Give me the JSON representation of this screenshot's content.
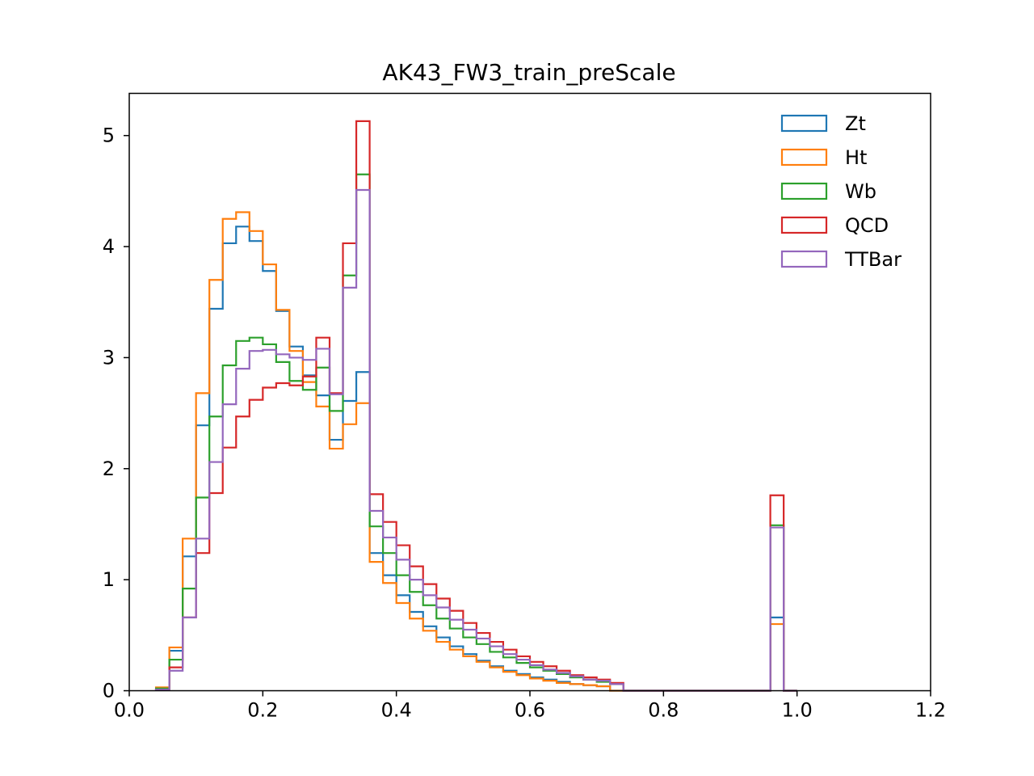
{
  "chart_data": {
    "type": "histogram-step",
    "title": "AK43_FW3_train_preScale",
    "xlabel": "",
    "ylabel": "",
    "xlim": [
      0.0,
      1.2
    ],
    "ylim": [
      0,
      5.38
    ],
    "xticks": [
      0.0,
      0.2,
      0.4,
      0.6,
      0.8,
      1.0,
      1.2
    ],
    "xtick_labels": [
      "0.0",
      "0.2",
      "0.4",
      "0.6",
      "0.8",
      "1.0",
      "1.2"
    ],
    "yticks": [
      0,
      1,
      2,
      3,
      4,
      5
    ],
    "ytick_labels": [
      "0",
      "1",
      "2",
      "3",
      "4",
      "5"
    ],
    "grid": false,
    "legend_position": "top-right",
    "bins": {
      "start": 0.04,
      "width": 0.02,
      "count": 48
    },
    "series": [
      {
        "name": "Zt",
        "color": "#1f77b4",
        "values": [
          0.02,
          0.36,
          1.21,
          2.39,
          3.44,
          4.03,
          4.18,
          4.05,
          3.78,
          3.42,
          3.1,
          2.84,
          2.66,
          2.26,
          2.61,
          2.87,
          1.24,
          1.04,
          0.86,
          0.71,
          0.58,
          0.48,
          0.4,
          0.33,
          0.27,
          0.22,
          0.18,
          0.15,
          0.12,
          0.1,
          0.08,
          0.06,
          0.05,
          0.04,
          0,
          0,
          0,
          0,
          0,
          0,
          0,
          0,
          0,
          0,
          0,
          0,
          0.66,
          0
        ]
      },
      {
        "name": "Ht",
        "color": "#ff7f0e",
        "values": [
          0.03,
          0.39,
          1.37,
          2.68,
          3.7,
          4.25,
          4.31,
          4.14,
          3.84,
          3.43,
          3.06,
          2.78,
          2.56,
          2.18,
          2.4,
          2.59,
          1.16,
          0.97,
          0.79,
          0.65,
          0.54,
          0.44,
          0.37,
          0.31,
          0.26,
          0.21,
          0.17,
          0.14,
          0.11,
          0.09,
          0.07,
          0.06,
          0.05,
          0.04,
          0,
          0,
          0,
          0,
          0,
          0,
          0,
          0,
          0,
          0,
          0,
          0,
          0.6,
          0
        ]
      },
      {
        "name": "Wb",
        "color": "#2ca02c",
        "values": [
          0.02,
          0.28,
          0.92,
          1.74,
          2.47,
          2.93,
          3.15,
          3.18,
          3.12,
          2.96,
          2.79,
          2.71,
          2.91,
          2.52,
          3.74,
          4.65,
          1.48,
          1.24,
          1.04,
          0.89,
          0.77,
          0.65,
          0.56,
          0.48,
          0.42,
          0.35,
          0.3,
          0.25,
          0.21,
          0.18,
          0.15,
          0.12,
          0.1,
          0.08,
          0.06,
          0,
          0,
          0,
          0,
          0,
          0,
          0,
          0,
          0,
          0,
          0,
          1.49,
          0
        ]
      },
      {
        "name": "QCD",
        "color": "#d62728",
        "values": [
          0.01,
          0.21,
          0.66,
          1.24,
          1.78,
          2.19,
          2.47,
          2.62,
          2.73,
          2.77,
          2.75,
          2.83,
          3.18,
          2.68,
          4.03,
          5.13,
          1.77,
          1.52,
          1.31,
          1.12,
          0.96,
          0.83,
          0.72,
          0.61,
          0.52,
          0.44,
          0.37,
          0.31,
          0.26,
          0.22,
          0.18,
          0.14,
          0.12,
          0.1,
          0.07,
          0,
          0,
          0,
          0,
          0,
          0,
          0,
          0,
          0,
          0,
          0,
          1.76,
          0
        ]
      },
      {
        "name": "TTBar",
        "color": "#9467bd",
        "values": [
          0.01,
          0.18,
          0.66,
          1.37,
          2.06,
          2.58,
          2.9,
          3.06,
          3.07,
          3.03,
          3.0,
          2.98,
          3.08,
          2.67,
          3.63,
          4.51,
          1.62,
          1.38,
          1.18,
          1.0,
          0.86,
          0.75,
          0.64,
          0.55,
          0.47,
          0.4,
          0.33,
          0.28,
          0.23,
          0.19,
          0.16,
          0.13,
          0.1,
          0.09,
          0.06,
          0,
          0,
          0,
          0,
          0,
          0,
          0,
          0,
          0,
          0,
          0,
          1.47,
          0
        ]
      }
    ]
  }
}
